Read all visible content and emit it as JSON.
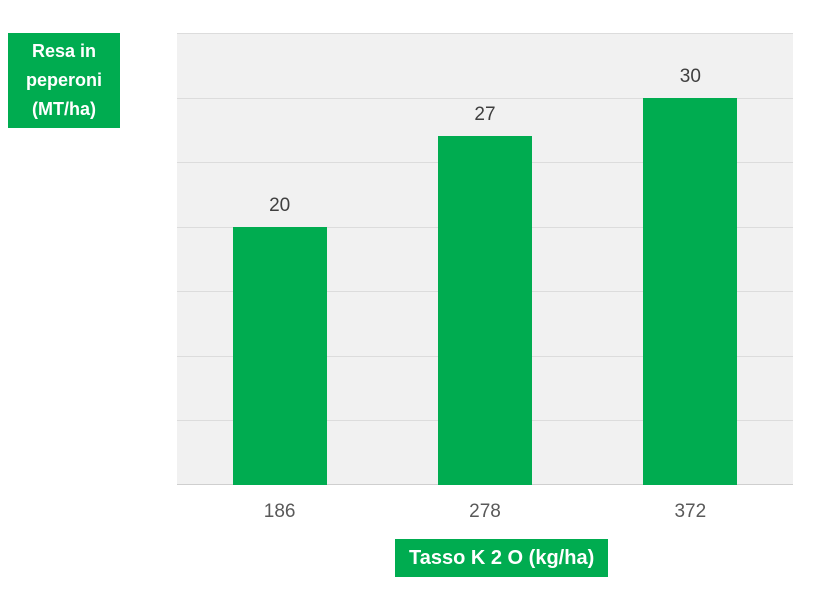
{
  "y_axis_title_box": {
    "lines": [
      "Resa in",
      "peperoni",
      "(MT/ha)"
    ],
    "full_text": "Resa in peperoni (MT/ha)"
  },
  "x_axis_title_box": {
    "text": "Tasso K 2 O (kg/ha)"
  },
  "chart_data": {
    "type": "bar",
    "categories": [
      "186",
      "278",
      "372"
    ],
    "values": [
      20,
      27,
      30
    ],
    "title": "",
    "xlabel": "Tasso K 2 O (kg/ha)",
    "ylabel": "Resa in peperoni (MT/ha)",
    "ylim": [
      0,
      35
    ],
    "gridline_step": 5,
    "grid": "horizontal-only",
    "legend": "none",
    "data_labels_shown": true,
    "colors": {
      "bar_fill": "#00AC50",
      "accent_green": "#00AC50",
      "plot_background": "#F1F1F1",
      "gridline": "#DCDCDC",
      "axis_line": "#CFCFCF",
      "value_label_text": "#3F3F3F",
      "tick_label_text": "#595959",
      "box_text": "#FFFFFF",
      "page_background": "#FFFFFF"
    }
  }
}
